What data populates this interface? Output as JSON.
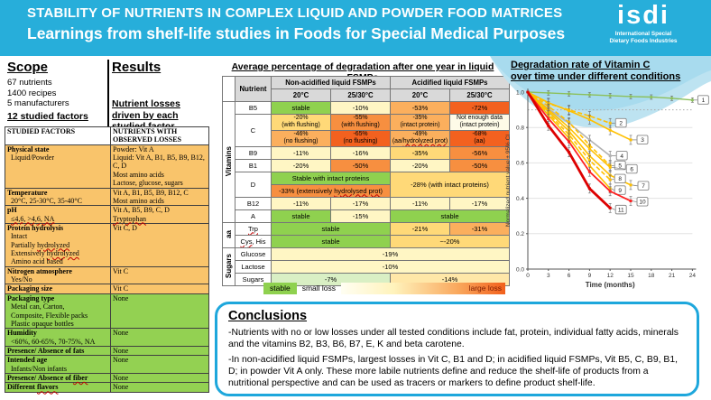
{
  "header": {
    "title1": "STABILITY OF NUTRIENTS IN COMPLEX LIQUID AND POWDER FOOD MATRICES",
    "title2": "Learnings from shelf-life studies in Foods for Special Medical Purposes",
    "logo": {
      "text": "isdi",
      "tag1": "International Special",
      "tag2": "Dietary Foods Industries"
    }
  },
  "scope": {
    "heading": "Scope",
    "items": [
      "67 nutrients",
      "1400 recipes",
      "5 manufacturers"
    ],
    "emphasis": "12 studied factors"
  },
  "results": {
    "heading": "Results",
    "subheading": "Nutrient losses driven by each studied factor"
  },
  "factors_table": {
    "col1_header": "STUDIED FACTORS",
    "col2_header": "NUTRIENTS WITH OBSERVED LOSSES",
    "rows": [
      {
        "status": "loss",
        "factor": "Physical state\n  Liquid/Powder",
        "nutrients": "Powder: Vit A\nLiquid: Vit A, B1, B5, B9, B12, C, D\nMost amino acids\nLactose, glucose, sugars"
      },
      {
        "status": "loss",
        "factor": "Temperature\n  20°C, 25-30°C, 35-40°C",
        "nutrients": "Vit A, B1, B5, B9, B12, C\nMost amino acids"
      },
      {
        "status": "loss",
        "factor": "pH\n  *≤4,6, >4,6, NA*",
        "nutrients": "Vit A, B5, B9, C, D\n*Tryptophan*"
      },
      {
        "status": "loss",
        "factor": "Protein hydrolysis\n  Intact\n  Partially *hydrolyzed*\n  Extensively *hydrolyzed*\n  Amino acid based",
        "nutrients": "Vit C, D"
      },
      {
        "status": "loss",
        "factor": "Nitrogen atmosphere\n  Yes/No",
        "nutrients": "Vit C"
      },
      {
        "status": "loss",
        "factor": "Packaging size",
        "nutrients": "Vit C"
      },
      {
        "status": "none",
        "factor": "Packaging type\n  Metal can, Carton,\n  Composite, Flexible packs\n  Plastic opaque bottles",
        "nutrients": "None"
      },
      {
        "status": "none",
        "factor": "Humidity\n  <60%, 60-65%, 70-75%, NA",
        "nutrients": "None"
      },
      {
        "status": "none",
        "factor": "Presence/ Absence of fats",
        "nutrients": "None"
      },
      {
        "status": "none",
        "factor": "Intended age\n  Infants/Non infants",
        "nutrients": "None"
      },
      {
        "status": "none",
        "factor": "Presence/ Absence of *fiber*",
        "nutrients": "None"
      },
      {
        "status": "none",
        "factor": "Different *flavors*",
        "nutrients": "None"
      }
    ]
  },
  "degradation_table": {
    "title": "Average percentage of degradation after one year in liquid FSMPs",
    "header": {
      "nutrient": "Nutrient",
      "group1": "Non-acidified liquid FSMPs",
      "group2": "Acidified liquid FSMPs",
      "temps": [
        "20°C",
        "25/30°C",
        "20°C",
        "25/30°C"
      ]
    },
    "rows": [
      {
        "group": {
          "label": "Vitamins",
          "rowspan": 9
        },
        "nutrient": {
          "label": "B5"
        },
        "cells": [
          {
            "t": "stable",
            "bg": "g"
          },
          {
            "t": "-10%",
            "bg": "c1"
          },
          {
            "t": "-53%",
            "bg": "o2"
          },
          {
            "t": "-72%",
            "bg": "o4"
          }
        ]
      },
      {
        "nutrient": {
          "label": "C",
          "rowspan": 2
        },
        "cells": [
          {
            "t": "-20%\n(with flushing)",
            "bg": "o1"
          },
          {
            "t": "-55%\n(with flushing)",
            "bg": "o3"
          },
          {
            "t": "-35%\n(intact protein)",
            "bg": "o2"
          },
          {
            "t": "Not enough data\n(intact protein)",
            "bg": "c0"
          }
        ]
      },
      {
        "cells": [
          {
            "t": "-46%\n(no flushing)",
            "bg": "o2"
          },
          {
            "t": "-65%\n(no flushing)",
            "bg": "o4"
          },
          {
            "t": "-49%\n(aa/*hydrolyzed prot*)",
            "bg": "o2"
          },
          {
            "t": "-68%\n(aa)",
            "bg": "o4"
          }
        ]
      },
      {
        "nutrient": {
          "label": "B9"
        },
        "cells": [
          {
            "t": "-11%",
            "bg": "c1"
          },
          {
            "t": "-16%",
            "bg": "c1"
          },
          {
            "t": "-35%",
            "bg": "o1"
          },
          {
            "t": "-56%",
            "bg": "o3"
          }
        ]
      },
      {
        "nutrient": {
          "label": "B1"
        },
        "cells": [
          {
            "t": "-20%",
            "bg": "c1"
          },
          {
            "t": "-50%",
            "bg": "o3"
          },
          {
            "t": "-20%",
            "bg": "c1"
          },
          {
            "t": "-50%",
            "bg": "o3"
          }
        ]
      },
      {
        "nutrient": {
          "label": "D",
          "rowspan": 2
        },
        "h": 11,
        "cells": [
          {
            "t": "Stable with intact proteins",
            "bg": "g",
            "colspan": 2
          },
          {
            "t": "-28% (with intact proteins)",
            "bg": "o1",
            "colspan": 2,
            "rowspan": 2
          }
        ]
      },
      {
        "h": 11,
        "cells": [
          {
            "t": "-33% (extensively *hydrolysed prot*)",
            "bg": "o3",
            "colspan": 2
          }
        ]
      },
      {
        "nutrient": {
          "label": "B12"
        },
        "cells": [
          {
            "t": "-11%",
            "bg": "c1"
          },
          {
            "t": "-17%",
            "bg": "c1"
          },
          {
            "t": "-11%",
            "bg": "c1"
          },
          {
            "t": "-17%",
            "bg": "c1"
          }
        ]
      },
      {
        "nutrient": {
          "label": "A"
        },
        "cells": [
          {
            "t": "stable",
            "bg": "g"
          },
          {
            "t": "-15%",
            "bg": "c1"
          },
          {
            "t": "stable",
            "bg": "g",
            "colspan": 2
          }
        ]
      },
      {
        "group": {
          "label": "aa",
          "rowspan": 2
        },
        "nutrient": {
          "label": "*Trp*"
        },
        "thick_top": true,
        "cells": [
          {
            "t": "stable",
            "bg": "g",
            "colspan": 2
          },
          {
            "t": "-21%",
            "bg": "o1"
          },
          {
            "t": "-31%",
            "bg": "o2"
          }
        ]
      },
      {
        "nutrient": {
          "label": "*Cys*, His"
        },
        "cells": [
          {
            "t": "stable",
            "bg": "g",
            "colspan": 2
          },
          {
            "t": "~-20%",
            "bg": "o1",
            "colspan": 2
          }
        ]
      },
      {
        "group": {
          "label": "Sugars",
          "rowspan": 3
        },
        "nutrient": {
          "label": "Glucose"
        },
        "thick_top": true,
        "cells": [
          {
            "t": "-19%",
            "bg": "c1",
            "colspan": 4
          }
        ]
      },
      {
        "nutrient": {
          "label": "Lactose"
        },
        "cells": [
          {
            "t": "-10%",
            "bg": "c1",
            "colspan": 4
          }
        ]
      },
      {
        "nutrient": {
          "label": "Sugars"
        },
        "cells": [
          {
            "t": "-7%",
            "bg": "g1",
            "colspan": 2
          },
          {
            "t": "-14%",
            "bg": "t1",
            "colspan": 2
          }
        ]
      }
    ],
    "legend": {
      "stable": "stable",
      "small": "small loss",
      "large": "large loss"
    }
  },
  "chart": {
    "title_line1": "Degradation rate of Vitamin C",
    "title_line2": "over time under different conditions"
  },
  "chart_data": {
    "type": "line",
    "xlabel": "Time (months)",
    "ylabel": "Normalized nutrient value ± 95% CI",
    "xlim": [
      0,
      24
    ],
    "ylim": [
      0.0,
      1.0
    ],
    "xticks": [
      0,
      3,
      6,
      9,
      12,
      15,
      18,
      21,
      24
    ],
    "yticks": [
      0.0,
      0.2,
      0.4,
      0.6,
      0.8,
      1.0
    ],
    "dotted_reference_y": 0.9,
    "grid": true,
    "series": [
      {
        "name": "1",
        "color": "#8CC05C",
        "dash": false,
        "width": 1.4,
        "marker": "circle",
        "x": [
          0,
          3,
          6,
          9,
          12,
          15,
          18,
          21,
          24
        ],
        "y": [
          1.0,
          0.995,
          0.99,
          0.985,
          0.98,
          0.975,
          0.972,
          0.965,
          0.955
        ]
      },
      {
        "name": "2",
        "color": "#FFC000",
        "dash": true,
        "width": 1.6,
        "marker": "square",
        "x": [
          0,
          3,
          6,
          9,
          12
        ],
        "y": [
          1.0,
          0.935,
          0.9,
          0.865,
          0.825
        ]
      },
      {
        "name": "3",
        "color": "#FFC000",
        "dash": false,
        "width": 1.6,
        "marker": "square",
        "x": [
          0,
          3,
          6,
          9,
          12,
          15
        ],
        "y": [
          1.0,
          0.94,
          0.895,
          0.845,
          0.785,
          0.73
        ]
      },
      {
        "name": "4",
        "color": "#B3B3B3",
        "dash": false,
        "width": 1.6,
        "marker": "square",
        "x": [
          0,
          3,
          6,
          9,
          12
        ],
        "y": [
          1.0,
          0.905,
          0.825,
          0.73,
          0.64
        ]
      },
      {
        "name": "5",
        "color": "#FFC000",
        "dash": true,
        "width": 1.6,
        "marker": "square",
        "x": [
          0,
          3,
          6,
          9,
          12
        ],
        "y": [
          1.0,
          0.92,
          0.83,
          0.7,
          0.585
        ]
      },
      {
        "name": "6",
        "color": "#FFC000",
        "dash": false,
        "width": 1.6,
        "marker": "square",
        "x": [
          0,
          3,
          6,
          9,
          12
        ],
        "y": [
          1.0,
          0.9,
          0.8,
          0.68,
          0.575
        ]
      },
      {
        "name": "7",
        "color": "#FFC000",
        "dash": false,
        "width": 1.6,
        "marker": "square",
        "x": [
          0,
          3,
          6,
          9,
          12,
          15
        ],
        "y": [
          1.0,
          0.89,
          0.78,
          0.64,
          0.53,
          0.475
        ]
      },
      {
        "name": "8",
        "color": "#FFC000",
        "dash": true,
        "width": 1.6,
        "marker": "square",
        "x": [
          0,
          3,
          6,
          9,
          12
        ],
        "y": [
          1.0,
          0.88,
          0.76,
          0.615,
          0.505
        ]
      },
      {
        "name": "9",
        "color": "#FFC000",
        "dash": false,
        "width": 1.6,
        "marker": "square",
        "x": [
          0,
          3,
          6,
          9,
          12
        ],
        "y": [
          1.0,
          0.87,
          0.74,
          0.585,
          0.455
        ]
      },
      {
        "name": "10",
        "color": "#FF2020",
        "dash": false,
        "width": 1.8,
        "marker": "square",
        "x": [
          0,
          3,
          6,
          9,
          12,
          15
        ],
        "y": [
          1.0,
          0.85,
          0.72,
          0.55,
          0.44,
          0.385
        ]
      },
      {
        "name": "11",
        "color": "#DD0000",
        "dash": false,
        "width": 2.8,
        "marker": "square",
        "x": [
          0,
          3,
          6,
          9,
          12
        ],
        "y": [
          1.0,
          0.81,
          0.66,
          0.455,
          0.345
        ]
      }
    ]
  },
  "conclusions": {
    "heading": "Conclusions",
    "para1": "-Nutrients with no or low losses under all tested conditions include fat, protein, individual fatty acids, minerals and the vitamins B2, B3, B6, B7, E, K and beta carotene.",
    "para2": "-In non-acidified liquid FSMPs, largest losses in Vit C, B1 and D;  in acidified liquid FSMPs, Vit B5, C, B9, B1, D; in powder Vit A only. These more labile nutrients define and reduce the shelf-life of products from a nutritional perspective and can be used as tracers or markers to define product shelf-life."
  }
}
